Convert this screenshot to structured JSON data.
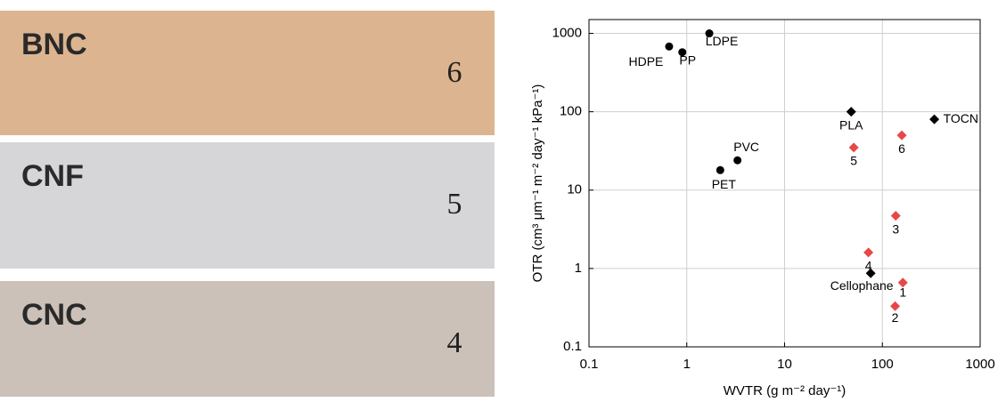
{
  "photos": [
    {
      "label": "BNC",
      "number": "6",
      "color": "#dcb48f"
    },
    {
      "label": "CNF",
      "number": "5",
      "color": "#d6d6d8"
    },
    {
      "label": "CNC",
      "number": "4",
      "color": "#cbc1b8"
    }
  ],
  "chart_data": {
    "type": "scatter",
    "xlabel": "WVTR (g m⁻² day⁻¹)",
    "ylabel": "OTR (cm³ μm⁻¹ m⁻² day⁻¹ kPa⁻¹)",
    "xscale": "log",
    "yscale": "log",
    "grid": true,
    "xlim": [
      0.1,
      1000
    ],
    "ylim": [
      0.1,
      1500
    ],
    "xticks": [
      0.1,
      1,
      10,
      100,
      1000
    ],
    "yticks": [
      0.1,
      1,
      10,
      100,
      1000
    ],
    "series": [
      {
        "marker": "circle",
        "color": "#000000",
        "x": [
          0.66,
          0.9,
          1.7,
          2.2,
          3.3
        ],
        "values": [
          680,
          575,
          1000,
          18,
          24
        ],
        "labels": [
          "HDPE",
          "PP",
          "LDPE",
          "PET",
          "PVC"
        ]
      },
      {
        "marker": "diamond",
        "color": "#000000",
        "x": [
          48,
          340,
          76
        ],
        "values": [
          100,
          80,
          0.87
        ],
        "labels": [
          "PLA",
          "TOCN",
          "Cellophane"
        ]
      },
      {
        "marker": "diamond",
        "color": "#e8474a",
        "x": [
          162,
          135,
          137,
          72,
          51,
          158
        ],
        "values": [
          0.66,
          0.33,
          4.7,
          1.6,
          35,
          50
        ],
        "labels": [
          "1",
          "2",
          "3",
          "4",
          "5",
          "6"
        ]
      }
    ]
  }
}
